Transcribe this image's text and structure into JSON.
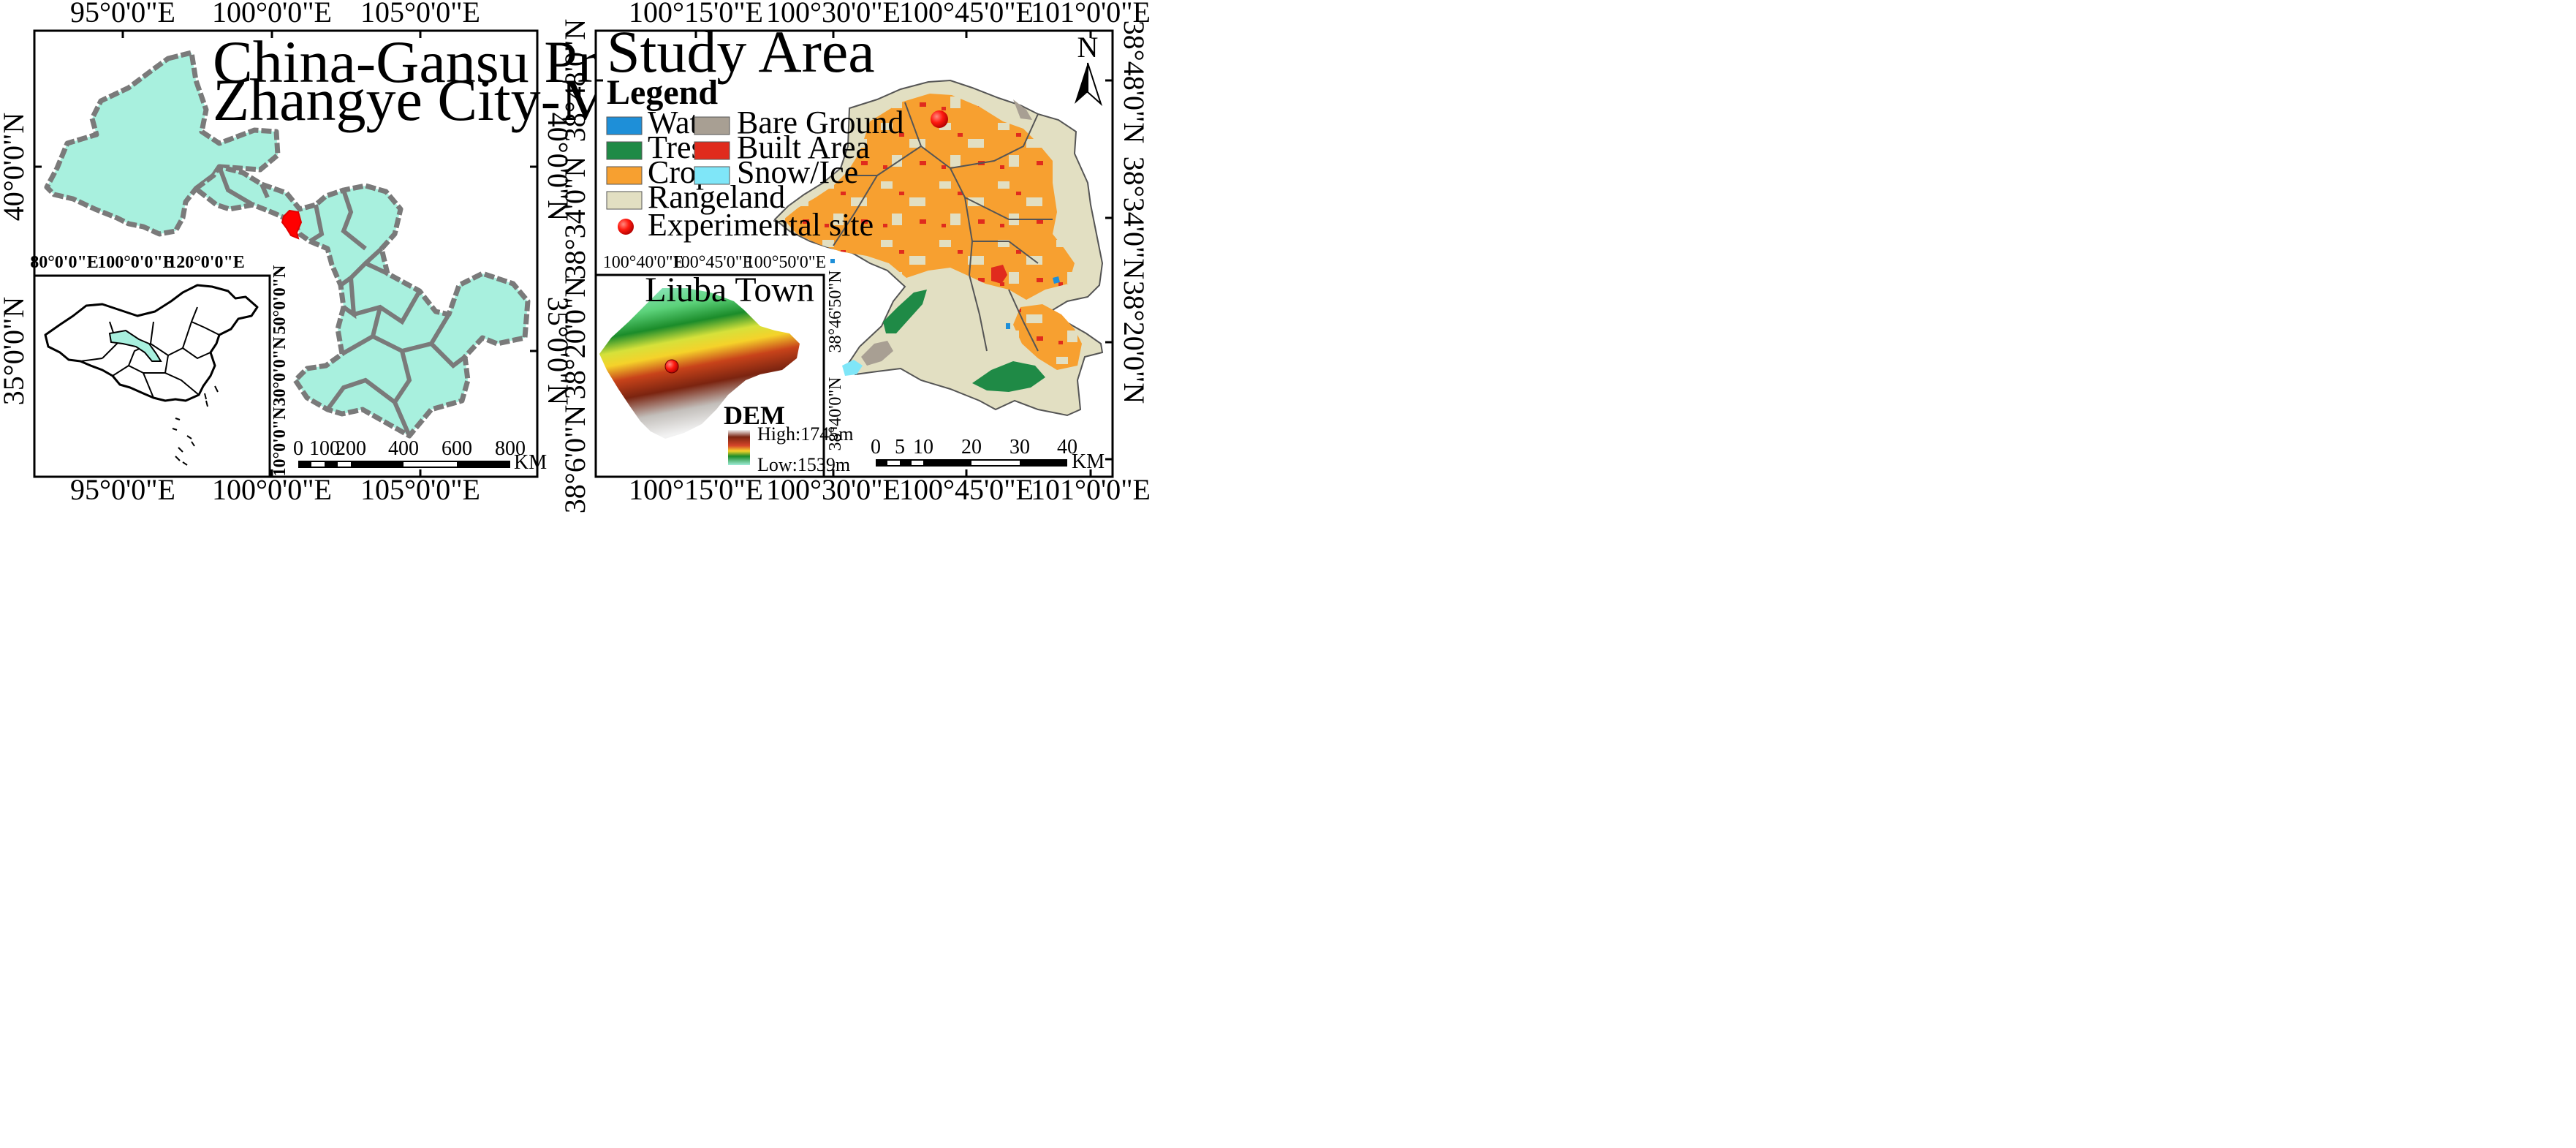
{
  "colors": {
    "water": "#1e8fd8",
    "trees": "#1f8a46",
    "crops": "#f7a030",
    "rangeland": "#e2dfc2",
    "bare_ground": "#a89f93",
    "built_area": "#e02b1d",
    "snow_ice": "#7fe6f8",
    "gansu_fill": "#a8f0de",
    "highlight": "#ff0000"
  },
  "left_panel": {
    "title_line1": "China-Gansu Province-",
    "title_line2": "Zhangye City-Minle County",
    "top_labels": [
      "95°0'0\"E",
      "100°0'0\"E",
      "105°0'0\"E"
    ],
    "bottom_labels": [
      "95°0'0\"E",
      "100°0'0\"E",
      "105°0'0\"E"
    ],
    "left_labels": [
      "40°0'0\"N",
      "35°0'0\"N"
    ],
    "right_labels": [
      "40°0'0\"N",
      "35°0'0\"N"
    ],
    "scale_bar": {
      "ticks": [
        "0",
        "100",
        "200",
        "400",
        "600",
        "800"
      ],
      "unit": "KM"
    }
  },
  "china_inset": {
    "top_labels": [
      "80°0'0\"E",
      "100°0'0\"E",
      "120°0'0\"E"
    ],
    "right_labels": [
      "50°0'0\"N",
      "30°0'0\"N",
      "10°0'0\"N"
    ]
  },
  "right_panel": {
    "title": "Study Area",
    "north_label": "N",
    "top_labels": [
      "100°15'0\"E",
      "100°30'0\"E",
      "100°45'0\"E",
      "101°0'0\"E"
    ],
    "bottom_labels": [
      "100°15'0\"E",
      "100°30'0\"E",
      "100°45'0\"E",
      "101°0'0\"E"
    ],
    "left_labels": [
      "38°48'0\"N",
      "38°34'0\"N",
      "38°20'0\"N",
      "38°6'0\"N"
    ],
    "right_labels": [
      "38°48'0\"N",
      "38°34'0\"N",
      "38°20'0\"N"
    ],
    "scale_bar": {
      "ticks": [
        "0",
        "5",
        "10",
        "20",
        "30",
        "40"
      ],
      "unit": "KM"
    },
    "legend": {
      "title": "Legend",
      "items": [
        "Water",
        "Bare Ground",
        "Tress",
        "Built Area",
        "Crops",
        "Snow/Ice",
        "Rangeland"
      ],
      "site_label": "Experimental site"
    }
  },
  "liuba_inset": {
    "title": "Liuba Town",
    "top_labels": [
      "100°40'0\"E",
      "100°45'0\"E",
      "100°50'0\"E"
    ],
    "right_labels": [
      "38°46'50\"N",
      "38°40'0\"N"
    ],
    "dem_title": "DEM",
    "dem_high": "High:1745m",
    "dem_low": "Low:1539m"
  }
}
